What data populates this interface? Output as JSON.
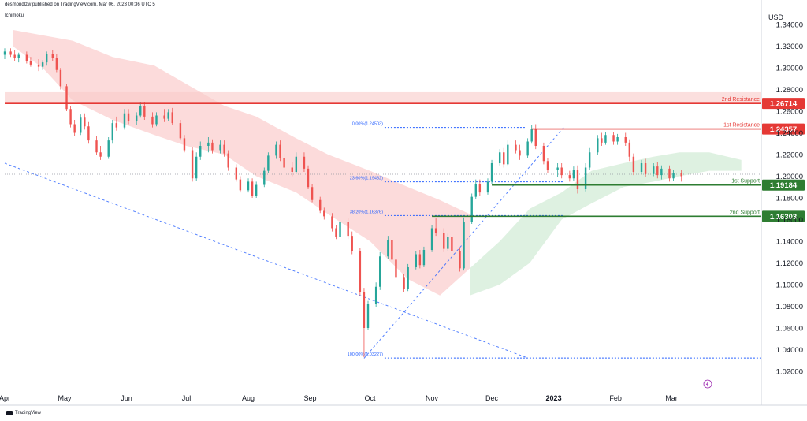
{
  "header": {
    "published_line": "desmondlzw published on TradingView.com, Mar 06, 2023 00:36 UTC 5",
    "indicator": "Ichimoku",
    "currency": "USD",
    "brand": "TradingView"
  },
  "colors": {
    "up": "#26a69a",
    "down": "#ef5350",
    "resistance": "#e53935",
    "support": "#2e7d32",
    "fib": "#2962ff",
    "cloud_bear": "#fbd5d5",
    "cloud_bull": "#d8eedc",
    "axis_text": "#131722"
  },
  "chart_data": {
    "type": "candlestick",
    "pair": "EURUSD (inferred, not printed)",
    "y_axis": {
      "min": 1.0,
      "max": 1.35,
      "tick_labels": [
        "1.34000",
        "1.32000",
        "1.30000",
        "1.28000",
        "1.26000",
        "1.24000",
        "1.22000",
        "1.20000",
        "1.18000",
        "1.16000",
        "1.14000",
        "1.12000",
        "1.10000",
        "1.08000",
        "1.06000",
        "1.04000",
        "1.02000"
      ],
      "tick_values": [
        1.34,
        1.32,
        1.3,
        1.28,
        1.26,
        1.24,
        1.22,
        1.2,
        1.18,
        1.16,
        1.14,
        1.12,
        1.1,
        1.08,
        1.06,
        1.04,
        1.02
      ]
    },
    "x_axis": {
      "labels": [
        "Apr",
        "May",
        "Jun",
        "Jul",
        "Aug",
        "Sep",
        "Oct",
        "Nov",
        "Dec",
        "2023",
        "Feb",
        "Mar"
      ],
      "dates": [
        "2022-04-01",
        "2022-05-01",
        "2022-06-01",
        "2022-07-01",
        "2022-08-01",
        "2022-09-01",
        "2022-10-01",
        "2022-11-01",
        "2022-12-01",
        "2023-01-01",
        "2023-02-01",
        "2023-03-01"
      ],
      "start": "2022-04-01",
      "end": "2023-04-15"
    },
    "levels": [
      {
        "name": "2nd Resistance",
        "value": 1.26714,
        "label": "1.26714",
        "kind": "resistance"
      },
      {
        "name": "1st Resistance",
        "value": 1.24357,
        "label": "1.24357",
        "kind": "resistance"
      },
      {
        "name": "1st Support",
        "value": 1.19184,
        "label": "1.19184",
        "kind": "support"
      },
      {
        "name": "2nd Support",
        "value": 1.16303,
        "label": "1.16303",
        "kind": "support"
      }
    ],
    "resistance_zone": [
      1.2671,
      1.2775
    ],
    "fibonacci": [
      {
        "label": "0.00%(1.24503)",
        "value": 1.24503
      },
      {
        "label": "23.60%(1.19482)",
        "value": 1.19482
      },
      {
        "label": "38.20%(1.16376)",
        "value": 1.16376
      },
      {
        "label": "100.00%(1.03227)",
        "value": 1.03227
      }
    ],
    "current_price": 1.2018,
    "trendlines": [
      {
        "from": [
          "2022-04-01",
          1.212
        ],
        "to": [
          "2022-12-18",
          1.033
        ]
      },
      {
        "from": [
          "2022-09-28",
          1.032
        ],
        "to": [
          "2023-01-06",
          1.245
        ]
      }
    ],
    "candles": [
      [
        "2022-04-01",
        1.312,
        1.318,
        1.308,
        1.315
      ],
      [
        "2022-04-04",
        1.315,
        1.318,
        1.31,
        1.312
      ],
      [
        "2022-04-06",
        1.312,
        1.316,
        1.306,
        1.309
      ],
      [
        "2022-04-08",
        1.309,
        1.314,
        1.305,
        1.312
      ],
      [
        "2022-04-12",
        1.312,
        1.315,
        1.304,
        1.306
      ],
      [
        "2022-04-14",
        1.306,
        1.31,
        1.301,
        1.303
      ],
      [
        "2022-04-18",
        1.303,
        1.308,
        1.297,
        1.301
      ],
      [
        "2022-04-20",
        1.301,
        1.307,
        1.298,
        1.305
      ],
      [
        "2022-04-22",
        1.305,
        1.315,
        1.302,
        1.313
      ],
      [
        "2022-04-25",
        1.313,
        1.316,
        1.306,
        1.309
      ],
      [
        "2022-04-27",
        1.309,
        1.313,
        1.296,
        1.298
      ],
      [
        "2022-04-29",
        1.298,
        1.3,
        1.28,
        1.283
      ],
      [
        "2022-05-02",
        1.283,
        1.285,
        1.26,
        1.262
      ],
      [
        "2022-05-04",
        1.262,
        1.265,
        1.245,
        1.248
      ],
      [
        "2022-05-06",
        1.248,
        1.252,
        1.237,
        1.24
      ],
      [
        "2022-05-09",
        1.24,
        1.257,
        1.238,
        1.254
      ],
      [
        "2022-05-11",
        1.254,
        1.258,
        1.243,
        1.246
      ],
      [
        "2022-05-13",
        1.246,
        1.25,
        1.23,
        1.233
      ],
      [
        "2022-05-17",
        1.233,
        1.237,
        1.22,
        1.222
      ],
      [
        "2022-05-19",
        1.222,
        1.228,
        1.215,
        1.218
      ],
      [
        "2022-05-23",
        1.218,
        1.236,
        1.216,
        1.233
      ],
      [
        "2022-05-25",
        1.233,
        1.252,
        1.23,
        1.249
      ],
      [
        "2022-05-27",
        1.249,
        1.255,
        1.242,
        1.245
      ],
      [
        "2022-05-31",
        1.245,
        1.262,
        1.243,
        1.258
      ],
      [
        "2022-06-02",
        1.258,
        1.262,
        1.248,
        1.251
      ],
      [
        "2022-06-06",
        1.251,
        1.259,
        1.247,
        1.256
      ],
      [
        "2022-06-08",
        1.256,
        1.268,
        1.254,
        1.265
      ],
      [
        "2022-06-10",
        1.265,
        1.268,
        1.252,
        1.255
      ],
      [
        "2022-06-14",
        1.255,
        1.259,
        1.245,
        1.248
      ],
      [
        "2022-06-16",
        1.248,
        1.259,
        1.246,
        1.256
      ],
      [
        "2022-06-20",
        1.256,
        1.262,
        1.25,
        1.253
      ],
      [
        "2022-06-22",
        1.253,
        1.262,
        1.251,
        1.259
      ],
      [
        "2022-06-24",
        1.259,
        1.263,
        1.247,
        1.249
      ],
      [
        "2022-06-28",
        1.249,
        1.252,
        1.233,
        1.235
      ],
      [
        "2022-06-30",
        1.235,
        1.238,
        1.222,
        1.224
      ],
      [
        "2022-07-04",
        1.224,
        1.227,
        1.195,
        1.198
      ],
      [
        "2022-07-06",
        1.198,
        1.222,
        1.196,
        1.218
      ],
      [
        "2022-07-08",
        1.218,
        1.232,
        1.215,
        1.228
      ],
      [
        "2022-07-12",
        1.228,
        1.236,
        1.222,
        1.231
      ],
      [
        "2022-07-14",
        1.231,
        1.234,
        1.221,
        1.224
      ],
      [
        "2022-07-18",
        1.224,
        1.233,
        1.221,
        1.229
      ],
      [
        "2022-07-20",
        1.229,
        1.233,
        1.218,
        1.221
      ],
      [
        "2022-07-22",
        1.221,
        1.224,
        1.205,
        1.208
      ],
      [
        "2022-07-26",
        1.208,
        1.211,
        1.195,
        1.197
      ],
      [
        "2022-07-28",
        1.197,
        1.2,
        1.185,
        1.187
      ],
      [
        "2022-08-01",
        1.187,
        1.198,
        1.185,
        1.195
      ],
      [
        "2022-08-03",
        1.195,
        1.198,
        1.18,
        1.182
      ],
      [
        "2022-08-05",
        1.182,
        1.195,
        1.18,
        1.192
      ],
      [
        "2022-08-09",
        1.192,
        1.208,
        1.19,
        1.205
      ],
      [
        "2022-08-11",
        1.205,
        1.222,
        1.203,
        1.219
      ],
      [
        "2022-08-15",
        1.219,
        1.232,
        1.216,
        1.229
      ],
      [
        "2022-08-17",
        1.229,
        1.233,
        1.214,
        1.217
      ],
      [
        "2022-08-19",
        1.217,
        1.221,
        1.205,
        1.208
      ],
      [
        "2022-08-23",
        1.208,
        1.213,
        1.2,
        1.204
      ],
      [
        "2022-08-25",
        1.204,
        1.222,
        1.202,
        1.218
      ],
      [
        "2022-08-29",
        1.218,
        1.222,
        1.204,
        1.207
      ],
      [
        "2022-08-31",
        1.207,
        1.21,
        1.188,
        1.19
      ],
      [
        "2022-09-02",
        1.19,
        1.193,
        1.176,
        1.178
      ],
      [
        "2022-09-06",
        1.178,
        1.181,
        1.166,
        1.168
      ],
      [
        "2022-09-08",
        1.168,
        1.171,
        1.16,
        1.163
      ],
      [
        "2022-09-12",
        1.163,
        1.166,
        1.149,
        1.152
      ],
      [
        "2022-09-14",
        1.152,
        1.155,
        1.142,
        1.144
      ],
      [
        "2022-09-16",
        1.144,
        1.162,
        1.142,
        1.158
      ],
      [
        "2022-09-20",
        1.158,
        1.161,
        1.142,
        1.145
      ],
      [
        "2022-09-22",
        1.145,
        1.149,
        1.128,
        1.131
      ],
      [
        "2022-09-26",
        1.131,
        1.134,
        1.09,
        1.093
      ],
      [
        "2022-09-28",
        1.093,
        1.097,
        1.033,
        1.06
      ],
      [
        "2022-09-30",
        1.06,
        1.085,
        1.058,
        1.082
      ],
      [
        "2022-10-04",
        1.082,
        1.102,
        1.079,
        1.098
      ],
      [
        "2022-10-06",
        1.098,
        1.13,
        1.095,
        1.126
      ],
      [
        "2022-10-10",
        1.126,
        1.145,
        1.124,
        1.141
      ],
      [
        "2022-10-12",
        1.141,
        1.144,
        1.12,
        1.123
      ],
      [
        "2022-10-14",
        1.123,
        1.126,
        1.104,
        1.107
      ],
      [
        "2022-10-18",
        1.107,
        1.11,
        1.093,
        1.096
      ],
      [
        "2022-10-20",
        1.096,
        1.119,
        1.094,
        1.116
      ],
      [
        "2022-10-24",
        1.116,
        1.131,
        1.114,
        1.128
      ],
      [
        "2022-10-26",
        1.128,
        1.132,
        1.115,
        1.118
      ],
      [
        "2022-10-28",
        1.118,
        1.135,
        1.116,
        1.132
      ],
      [
        "2022-11-01",
        1.132,
        1.155,
        1.13,
        1.152
      ],
      [
        "2022-11-03",
        1.152,
        1.161,
        1.145,
        1.148
      ],
      [
        "2022-11-07",
        1.148,
        1.152,
        1.13,
        1.133
      ],
      [
        "2022-11-09",
        1.133,
        1.147,
        1.131,
        1.144
      ],
      [
        "2022-11-11",
        1.144,
        1.148,
        1.128,
        1.131
      ],
      [
        "2022-11-15",
        1.131,
        1.134,
        1.112,
        1.115
      ],
      [
        "2022-11-17",
        1.115,
        1.162,
        1.113,
        1.158
      ],
      [
        "2022-11-21",
        1.158,
        1.184,
        1.156,
        1.181
      ],
      [
        "2022-11-23",
        1.181,
        1.197,
        1.179,
        1.193
      ],
      [
        "2022-11-25",
        1.193,
        1.197,
        1.182,
        1.185
      ],
      [
        "2022-11-29",
        1.185,
        1.198,
        1.183,
        1.195
      ],
      [
        "2022-12-01",
        1.195,
        1.215,
        1.193,
        1.212
      ],
      [
        "2022-12-05",
        1.212,
        1.225,
        1.21,
        1.222
      ],
      [
        "2022-12-07",
        1.222,
        1.226,
        1.208,
        1.211
      ],
      [
        "2022-12-09",
        1.211,
        1.233,
        1.209,
        1.229
      ],
      [
        "2022-12-13",
        1.229,
        1.233,
        1.221,
        1.224
      ],
      [
        "2022-12-15",
        1.224,
        1.229,
        1.215,
        1.219
      ],
      [
        "2022-12-19",
        1.219,
        1.235,
        1.217,
        1.232
      ],
      [
        "2022-12-21",
        1.232,
        1.247,
        1.23,
        1.244
      ],
      [
        "2022-12-23",
        1.244,
        1.248,
        1.225,
        1.228
      ],
      [
        "2022-12-27",
        1.228,
        1.231,
        1.211,
        1.214
      ],
      [
        "2022-12-29",
        1.214,
        1.217,
        1.203,
        1.206
      ],
      [
        "2023-01-03",
        1.206,
        1.212,
        1.199,
        1.208
      ],
      [
        "2023-01-05",
        1.208,
        1.212,
        1.198,
        1.201
      ],
      [
        "2023-01-09",
        1.201,
        1.205,
        1.195,
        1.198
      ],
      [
        "2023-01-11",
        1.198,
        1.209,
        1.196,
        1.206
      ],
      [
        "2023-01-13",
        1.206,
        1.21,
        1.184,
        1.188
      ],
      [
        "2023-01-17",
        1.188,
        1.212,
        1.186,
        1.208
      ],
      [
        "2023-01-19",
        1.208,
        1.226,
        1.206,
        1.222
      ],
      [
        "2023-01-23",
        1.222,
        1.238,
        1.22,
        1.235
      ],
      [
        "2023-01-25",
        1.235,
        1.24,
        1.228,
        1.231
      ],
      [
        "2023-01-27",
        1.231,
        1.241,
        1.229,
        1.238
      ],
      [
        "2023-01-31",
        1.238,
        1.241,
        1.229,
        1.232
      ],
      [
        "2023-02-02",
        1.232,
        1.239,
        1.229,
        1.236
      ],
      [
        "2023-02-06",
        1.236,
        1.24,
        1.228,
        1.231
      ],
      [
        "2023-02-08",
        1.231,
        1.234,
        1.214,
        1.218
      ],
      [
        "2023-02-10",
        1.218,
        1.221,
        1.201,
        1.204
      ],
      [
        "2023-02-14",
        1.204,
        1.215,
        1.202,
        1.212
      ],
      [
        "2023-02-16",
        1.212,
        1.216,
        1.199,
        1.202
      ],
      [
        "2023-02-20",
        1.202,
        1.212,
        1.2,
        1.209
      ],
      [
        "2023-02-22",
        1.209,
        1.213,
        1.198,
        1.201
      ],
      [
        "2023-02-24",
        1.201,
        1.21,
        1.197,
        1.207
      ],
      [
        "2023-02-28",
        1.207,
        1.21,
        1.195,
        1.198
      ],
      [
        "2023-03-02",
        1.198,
        1.206,
        1.196,
        1.203
      ],
      [
        "2023-03-06",
        1.203,
        1.206,
        1.195,
        1.2
      ]
    ],
    "cloud_bear": [
      [
        "2022-04-05",
        1.335
      ],
      [
        "2022-04-20",
        1.33
      ],
      [
        "2022-05-05",
        1.325
      ],
      [
        "2022-05-25",
        1.31
      ],
      [
        "2022-06-15",
        1.302
      ],
      [
        "2022-07-01",
        1.285
      ],
      [
        "2022-07-20",
        1.265
      ],
      [
        "2022-08-05",
        1.255
      ],
      [
        "2022-08-25",
        1.235
      ],
      [
        "2022-09-10",
        1.22
      ],
      [
        "2022-10-01",
        1.205
      ],
      [
        "2022-10-20",
        1.19
      ],
      [
        "2022-11-05",
        1.178
      ],
      [
        "2022-11-20",
        1.165
      ],
      [
        "2022-11-20",
        1.115
      ],
      [
        "2022-11-05",
        1.09
      ],
      [
        "2022-10-20",
        1.105
      ],
      [
        "2022-10-01",
        1.14
      ],
      [
        "2022-09-10",
        1.165
      ],
      [
        "2022-08-25",
        1.185
      ],
      [
        "2022-08-05",
        1.2
      ],
      [
        "2022-07-20",
        1.22
      ],
      [
        "2022-07-01",
        1.228
      ],
      [
        "2022-06-15",
        1.238
      ],
      [
        "2022-05-25",
        1.252
      ],
      [
        "2022-05-05",
        1.27
      ],
      [
        "2022-04-20",
        1.3
      ],
      [
        "2022-04-05",
        1.32
      ]
    ],
    "cloud_bull": [
      [
        "2022-11-20",
        1.115
      ],
      [
        "2022-12-05",
        1.14
      ],
      [
        "2022-12-20",
        1.17
      ],
      [
        "2023-01-05",
        1.185
      ],
      [
        "2023-01-20",
        1.205
      ],
      [
        "2023-02-05",
        1.212
      ],
      [
        "2023-02-20",
        1.218
      ],
      [
        "2023-03-05",
        1.222
      ],
      [
        "2023-03-20",
        1.222
      ],
      [
        "2023-04-05",
        1.215
      ],
      [
        "2023-04-05",
        1.205
      ],
      [
        "2023-03-20",
        1.205
      ],
      [
        "2023-03-05",
        1.2
      ],
      [
        "2023-02-20",
        1.195
      ],
      [
        "2023-02-05",
        1.19
      ],
      [
        "2023-01-20",
        1.175
      ],
      [
        "2023-01-05",
        1.16
      ],
      [
        "2022-12-20",
        1.12
      ],
      [
        "2022-12-05",
        1.1
      ],
      [
        "2022-11-20",
        1.09
      ]
    ]
  }
}
